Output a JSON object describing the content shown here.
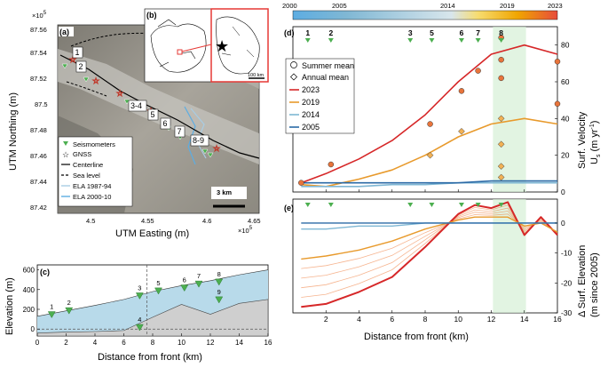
{
  "panel_a": {
    "letter": "(a)",
    "xlabel": "UTM Easting (m)",
    "ylabel": "UTM Northing (m)",
    "x_exponent": "×10",
    "x_exp_power": "5",
    "y_exponent": "×10",
    "y_exp_power": "5",
    "xticks": [
      "4.5",
      "4.55",
      "4.6",
      "4.65"
    ],
    "yticks": [
      "87.56",
      "87.54",
      "87.52",
      "87.5",
      "87.48",
      "87.46",
      "87.44",
      "87.42"
    ],
    "site_labels": [
      "1",
      "2",
      "3-4",
      "5",
      "6",
      "7",
      "8-9"
    ],
    "legend": [
      "Seismometers",
      "GNSS",
      "Centerline",
      "Sea level",
      "ELA 1987-94",
      "ELA 2000-10"
    ],
    "scalebar": "3 km",
    "colors": {
      "seismometer": "#4caf50",
      "gnss": "#c0392b",
      "ela_a": "#a9cce3",
      "ela_b": "#5dade2"
    }
  },
  "panel_b": {
    "letter": "(b)",
    "scalebar": "100 km",
    "colors": {
      "frame": "#e53935",
      "star": "#e53935"
    }
  },
  "colorbar": {
    "ticks": [
      "2000",
      "2005",
      "2014",
      "2019",
      "2023"
    ],
    "colors": [
      "#5dade2",
      "#a9cce3",
      "#f7dc6f",
      "#f0a500",
      "#e74c3c"
    ]
  },
  "panel_c": {
    "letter": "(c)",
    "xlabel": "Distance from front (km)",
    "ylabel": "Elevation (m)",
    "xticks": [
      "0",
      "2",
      "4",
      "6",
      "8",
      "10",
      "12",
      "14",
      "16"
    ],
    "yticks": [
      "0",
      "200",
      "400",
      "600"
    ],
    "site_labels": [
      "1",
      "2",
      "3",
      "4",
      "5",
      "6",
      "7",
      "8",
      "9"
    ],
    "colors": {
      "ice": "#b8daea",
      "bed": "#cfcfcf"
    },
    "chart_data": {
      "type": "area",
      "x_km": [
        0,
        2,
        4,
        6,
        8,
        10,
        12,
        14,
        16
      ],
      "surface_m": [
        130,
        185,
        240,
        300,
        380,
        440,
        490,
        550,
        600
      ],
      "bed_m": [
        -40,
        -30,
        -25,
        -15,
        120,
        250,
        150,
        260,
        300
      ],
      "sea_level_m": 0,
      "stations": [
        {
          "name": "1",
          "x_km": 1.0,
          "elev_m": 150
        },
        {
          "name": "2",
          "x_km": 2.2,
          "elev_m": 190
        },
        {
          "name": "3",
          "x_km": 7.1,
          "elev_m": 340
        },
        {
          "name": "4",
          "x_km": 7.1,
          "elev_m": 20
        },
        {
          "name": "5",
          "x_km": 8.4,
          "elev_m": 390
        },
        {
          "name": "6",
          "x_km": 10.2,
          "elev_m": 420
        },
        {
          "name": "7",
          "x_km": 11.2,
          "elev_m": 460
        },
        {
          "name": "8",
          "x_km": 12.6,
          "elev_m": 480
        },
        {
          "name": "9",
          "x_km": 12.6,
          "elev_m": 300
        }
      ],
      "xlim": [
        0,
        16
      ],
      "ylim": [
        -70,
        650
      ]
    }
  },
  "panel_d": {
    "letter": "(d)",
    "ylabel_1": "Surf. Velocity",
    "ylabel_2": "U",
    "ylabel_sub": "s",
    "ylabel_unit": "(m yr",
    "ylabel_unit_exp": "-1",
    "ylabel_close": ")",
    "yticks": [
      "0",
      "20",
      "40",
      "60",
      "80"
    ],
    "site_labels": [
      "1",
      "2",
      "3",
      "5",
      "6",
      "7",
      "8"
    ],
    "legend": [
      "Summer mean",
      "Annual mean",
      "2023",
      "2019",
      "2014",
      "2005"
    ],
    "colors": {
      "c2023": "#d62728",
      "c2019": "#e89a2c",
      "c2014": "#7fb7d4",
      "c2005": "#2b6aa6",
      "highlight": "#d5f0d5",
      "points": "#e8743b"
    },
    "chart_data": {
      "type": "line",
      "x_km": [
        0.5,
        2,
        4,
        6,
        8,
        10,
        12,
        14,
        16
      ],
      "series": [
        {
          "name": "2023",
          "values": [
            5,
            10,
            18,
            28,
            42,
            60,
            75,
            80,
            75
          ]
        },
        {
          "name": "2019",
          "values": [
            4,
            3,
            7,
            12,
            20,
            30,
            37,
            40,
            37
          ]
        },
        {
          "name": "2014",
          "values": [
            3,
            3,
            3,
            4,
            4,
            5,
            5,
            5,
            5
          ]
        },
        {
          "name": "2005",
          "values": [
            5,
            5,
            5,
            5,
            5,
            5,
            6,
            6,
            6
          ]
        }
      ],
      "summer_mean": [
        [
          0.5,
          5
        ],
        [
          2.3,
          15
        ],
        [
          8.3,
          37
        ],
        [
          10.2,
          55
        ],
        [
          11.2,
          66
        ],
        [
          12.6,
          84
        ],
        [
          12.6,
          72
        ],
        [
          12.6,
          62
        ],
        [
          16,
          71
        ],
        [
          16,
          48
        ]
      ],
      "annual_mean": [
        [
          8.3,
          20
        ],
        [
          10.2,
          33
        ],
        [
          12.6,
          40
        ],
        [
          12.6,
          26
        ],
        [
          12.6,
          14
        ],
        [
          12.6,
          8
        ]
      ],
      "ylim": [
        0,
        90
      ],
      "xlim": [
        0,
        16
      ],
      "highlight_km": [
        12.1,
        14.1
      ]
    }
  },
  "panel_e": {
    "letter": "(e)",
    "xlabel": "Distance from front (km)",
    "ylabel_1": "Δ Surf. Elevation",
    "ylabel_2": "(m since 2005)",
    "xticks": [
      "2",
      "4",
      "6",
      "8",
      "10",
      "12",
      "14",
      "16"
    ],
    "yticks": [
      "0",
      "-10",
      "-20",
      "-30"
    ],
    "chart_data": {
      "type": "line",
      "x_km": [
        0.5,
        2,
        4,
        6,
        8,
        10,
        11,
        12,
        13,
        14,
        15,
        16
      ],
      "series": [
        {
          "name": "2023",
          "values": [
            -28,
            -27,
            -23,
            -18,
            -8,
            3,
            6,
            5,
            7,
            -4,
            2,
            -4
          ]
        },
        {
          "name": "2019",
          "values": [
            -12,
            -11,
            -9,
            -6,
            -2,
            1,
            2,
            2,
            2,
            -1,
            0,
            -3
          ]
        },
        {
          "name": "2014",
          "values": [
            -2,
            -2,
            -1,
            -1,
            0,
            0,
            0,
            0,
            0,
            0,
            0,
            0
          ]
        },
        {
          "name": "2005",
          "values": [
            0,
            0,
            0,
            0,
            0,
            0,
            0,
            0,
            0,
            0,
            0,
            0
          ]
        }
      ],
      "ylim": [
        -30,
        8
      ],
      "xlim": [
        0,
        16
      ],
      "highlight_km": [
        12.1,
        14.1
      ]
    }
  }
}
